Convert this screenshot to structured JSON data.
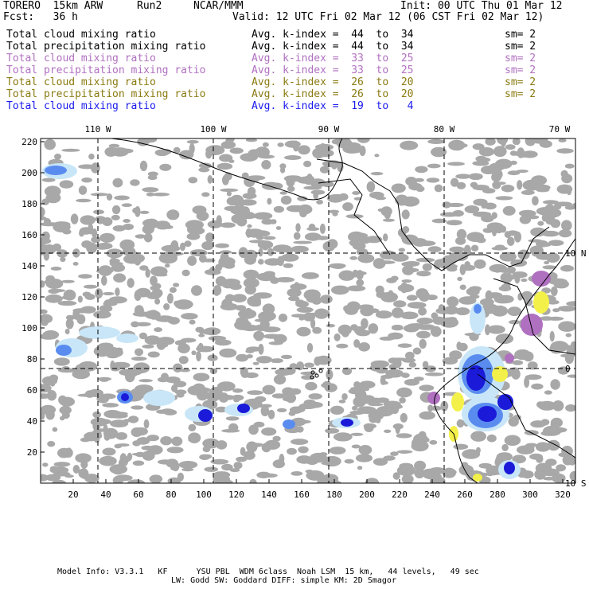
{
  "header": {
    "model": "TORERO  15km ARW",
    "run": "Run2",
    "org": "NCAR/MMM",
    "init": "Init: 00 UTC Thu 01 Mar 12",
    "fcst": "Fcst:   36 h",
    "valid": "Valid: 12 UTC Fri 02 Mar 12 (06 CST Fri 02 Mar 12)"
  },
  "legend": [
    {
      "field": "Total cloud mixing ratio",
      "kindex": "Avg. k-index =  44  to  34",
      "sm": "sm= 2",
      "color": "#000000"
    },
    {
      "field": "Total precipitation mixing ratio",
      "kindex": "Avg. k-index =  44  to  34",
      "sm": "sm= 2",
      "color": "#000000"
    },
    {
      "field": "Total cloud mixing ratio",
      "kindex": "Avg. k-index =  33  to  25",
      "sm": "sm= 2",
      "color": "#b070c0"
    },
    {
      "field": "Total precipitation mixing ratio",
      "kindex": "Avg. k-index =  33  to  25",
      "sm": "sm= 2",
      "color": "#b070c0"
    },
    {
      "field": "Total cloud mixing ratio",
      "kindex": "Avg. k-index =  26  to  20",
      "sm": "sm= 2",
      "color": "#8a7a10"
    },
    {
      "field": "Total precipitation mixing ratio",
      "kindex": "Avg. k-index =  26  to  20",
      "sm": "sm= 2",
      "color": "#8a7a10"
    },
    {
      "field": "Total cloud mixing ratio",
      "kindex": "Avg. k-index =  19  to   4",
      "sm": "",
      "color": "#1a1aee"
    }
  ],
  "map": {
    "lon_labels": [
      "110 W",
      "100 W",
      "90 W",
      "80 W",
      "70 W"
    ],
    "lat_labels": [
      "10 N",
      "0",
      "10 S"
    ],
    "y_ticks": [
      "220",
      "200",
      "180",
      "160",
      "140",
      "120",
      "100",
      "80",
      "60",
      "40",
      "20"
    ],
    "x_ticks": [
      "20",
      "40",
      "60",
      "80",
      "100",
      "120",
      "140",
      "160",
      "180",
      "200",
      "220",
      "240",
      "260",
      "280",
      "300",
      "320"
    ],
    "colors": {
      "cloud_gray": "#a8a8a8",
      "light_blue": "#c8e6f8",
      "mid_blue": "#5a8cf0",
      "dark_blue": "#1a1ad8",
      "purple": "#b070c0",
      "yellow": "#f4f04a"
    }
  },
  "footer": {
    "line1": "Model Info: V3.3.1   KF      YSU PBL  WDM 6class  Noah LSM  15 km,   44 levels,   49 sec",
    "line2": "LW: Godd SW: Goddard DIFF: simple KM: 2D Smagor"
  }
}
